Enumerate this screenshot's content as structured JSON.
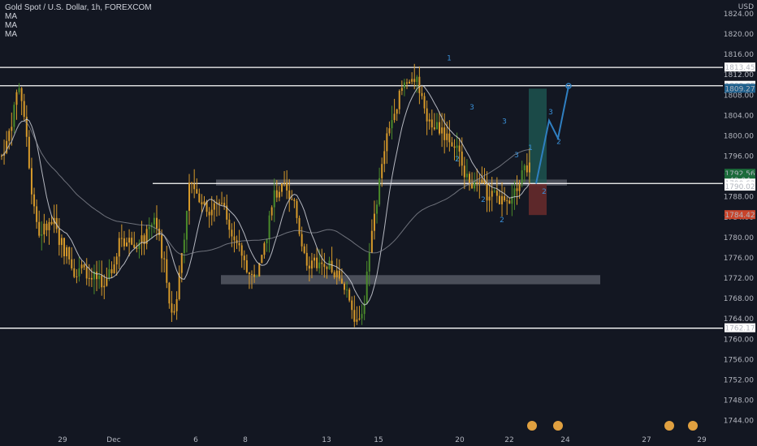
{
  "header": {
    "title": "Gold Spot / U.S. Dollar, 1h, FOREXCOM",
    "indicators": [
      "MA",
      "MA",
      "MA"
    ]
  },
  "axis": {
    "currency": "USD",
    "price_ticks": [
      1824,
      1820,
      1816,
      1812,
      1808,
      1804,
      1800,
      1796,
      1792,
      1788,
      1784,
      1780,
      1776,
      1772,
      1768,
      1764,
      1760,
      1756,
      1752,
      1748,
      1744
    ],
    "price_tick_labels": [
      "1824.00",
      "1820.00",
      "1816.00",
      "1812.00",
      "1808.00",
      "1804.00",
      "1800.00",
      "1796.00",
      "1792.00",
      "1788.00",
      "1784.00",
      "1780.00",
      "1776.00",
      "1772.00",
      "1768.00",
      "1764.00",
      "1760.00",
      "1756.00",
      "1752.00",
      "1748.00",
      "1744.00"
    ],
    "date_labels": [
      "29",
      "Dec",
      "6",
      "8",
      "13",
      "15",
      "20",
      "22",
      "24",
      "27",
      "29"
    ]
  },
  "price_tags": [
    {
      "text": "1813.45",
      "value": 1813.45,
      "bg": "#ffffff",
      "fg": "#131722"
    },
    {
      "text": "1809.85",
      "value": 1809.85,
      "bg": "#ffffff",
      "fg": "#131722"
    },
    {
      "text": "1809.27",
      "value": 1809.27,
      "bg": "#1e5f8c",
      "fg": "#ffffff"
    },
    {
      "text": "1792.56",
      "value": 1792.56,
      "bg": "#1b6b3a",
      "fg": "#ffffff"
    },
    {
      "text": "40:04",
      "value": 1791.3,
      "bg": "#1b6b3a",
      "fg": "#ffffff"
    },
    {
      "text": "1790.63",
      "value": 1790.63,
      "bg": "#ffffff",
      "fg": "#131722"
    },
    {
      "text": "1790.02",
      "value": 1790.02,
      "bg": "#ffffff",
      "fg": "#131722"
    },
    {
      "text": "1784.42",
      "value": 1784.42,
      "bg": "#c8442b",
      "fg": "#ffffff"
    },
    {
      "text": "1762.17",
      "value": 1762.17,
      "bg": "#ffffff",
      "fg": "#131722"
    }
  ],
  "wave_labels": [
    "1",
    "3",
    "3",
    "2",
    "2",
    "3",
    "2",
    "1",
    "2",
    "3",
    "2"
  ],
  "colors": {
    "background": "#131722",
    "candle": "#d79a2a",
    "candle_up": "#4a8a2a",
    "level_line": "#ffffff",
    "zone": "#787b86",
    "projection": "#2f7fc1",
    "wave_label": "#3a8fd6",
    "target_zone": "#1f5c55",
    "stop_zone": "#6b2b2b",
    "ma_slow": "#9598a1",
    "ma_fast": "#d1d4dc"
  },
  "chart_data": {
    "type": "candlestick",
    "title": "Gold Spot / U.S. Dollar, 1h, FOREXCOM",
    "ylabel": "USD",
    "ylim": [
      1742,
      1826
    ],
    "horizontal_levels": [
      1813.45,
      1809.85,
      1790.63,
      1762.17
    ],
    "zones": [
      {
        "from": 1790.2,
        "to": 1791.4,
        "x_start": "6",
        "x_end": "22"
      },
      {
        "from": 1770.8,
        "to": 1772.6,
        "x_start": "6",
        "x_end": "24"
      }
    ],
    "position": {
      "entry": 1790.63,
      "target": 1809.27,
      "stop": 1784.42
    },
    "projection_path": [
      1790.6,
      1803.0,
      1799.5,
      1809.8
    ],
    "trend_points": [
      1796,
      1812,
      1780,
      1783,
      1775,
      1773,
      1770,
      1781,
      1778,
      1785,
      1763,
      1792,
      1786,
      1787,
      1775,
      1772,
      1790,
      1786,
      1775,
      1773,
      1771,
      1763,
      1790,
      1806,
      1812,
      1803,
      1801,
      1795,
      1790,
      1787,
      1789,
      1795
    ]
  }
}
